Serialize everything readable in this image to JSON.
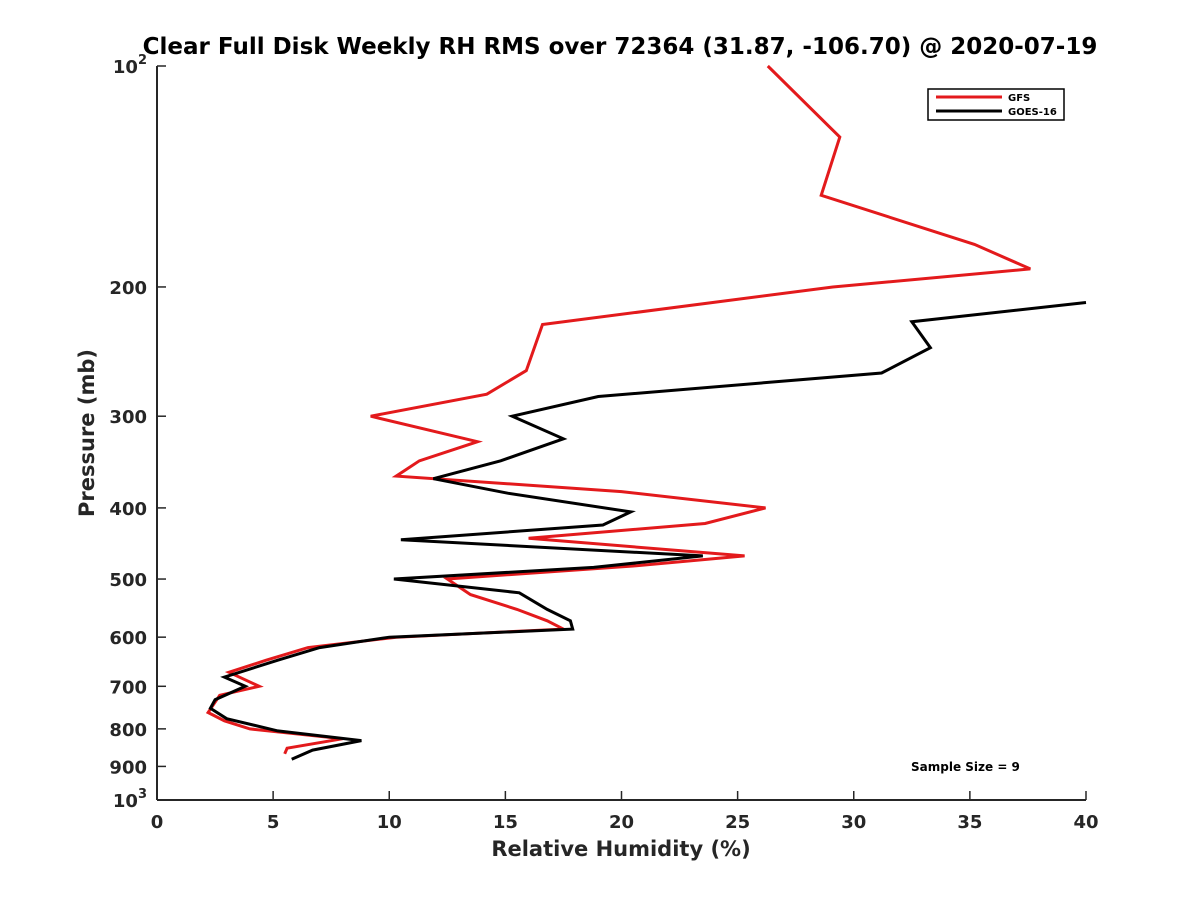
{
  "chart_data": {
    "type": "line",
    "title": "Clear Full Disk Weekly RH RMS over 72364 (31.87, -106.70) @ 2020-07-19",
    "xlabel": "Relative Humidity (%)",
    "ylabel": "Pressure (mb)",
    "xlim": [
      0,
      40
    ],
    "ylim": [
      100,
      1000
    ],
    "y_scale": "log",
    "y_reversed": true,
    "grid": false,
    "legend_position": "top-right",
    "x_ticks": [
      0,
      5,
      10,
      15,
      20,
      25,
      30,
      35,
      40
    ],
    "x_tick_labels": [
      "0",
      "5",
      "10",
      "15",
      "20",
      "25",
      "30",
      "35",
      "40"
    ],
    "y_ticks": [
      100,
      200,
      300,
      400,
      500,
      600,
      700,
      800,
      900,
      1000
    ],
    "y_tick_labels": [
      {
        "base": "10",
        "exp": "2"
      },
      {
        "base": "200",
        "exp": ""
      },
      {
        "base": "300",
        "exp": ""
      },
      {
        "base": "400",
        "exp": ""
      },
      {
        "base": "500",
        "exp": ""
      },
      {
        "base": "600",
        "exp": ""
      },
      {
        "base": "700",
        "exp": ""
      },
      {
        "base": "800",
        "exp": ""
      },
      {
        "base": "900",
        "exp": ""
      },
      {
        "base": "10",
        "exp": "3"
      }
    ],
    "series": [
      {
        "name": "GFS",
        "color": "#e31a1c",
        "points": [
          {
            "x": 26.3,
            "p": 100
          },
          {
            "x": 29.4,
            "p": 125
          },
          {
            "x": 28.6,
            "p": 150
          },
          {
            "x": 35.2,
            "p": 175
          },
          {
            "x": 37.6,
            "p": 189
          },
          {
            "x": 29.1,
            "p": 200
          },
          {
            "x": 16.6,
            "p": 225
          },
          {
            "x": 15.9,
            "p": 260
          },
          {
            "x": 14.2,
            "p": 280
          },
          {
            "x": 9.2,
            "p": 300
          },
          {
            "x": 13.8,
            "p": 325
          },
          {
            "x": 11.3,
            "p": 345
          },
          {
            "x": 10.3,
            "p": 362
          },
          {
            "x": 20.0,
            "p": 380
          },
          {
            "x": 26.2,
            "p": 400
          },
          {
            "x": 23.6,
            "p": 420
          },
          {
            "x": 16.0,
            "p": 440
          },
          {
            "x": 25.3,
            "p": 465
          },
          {
            "x": 20.5,
            "p": 480
          },
          {
            "x": 12.5,
            "p": 500
          },
          {
            "x": 13.5,
            "p": 525
          },
          {
            "x": 15.5,
            "p": 550
          },
          {
            "x": 16.8,
            "p": 570
          },
          {
            "x": 17.5,
            "p": 585
          },
          {
            "x": 10.3,
            "p": 600
          },
          {
            "x": 6.5,
            "p": 620
          },
          {
            "x": 4.7,
            "p": 645
          },
          {
            "x": 3.1,
            "p": 670
          },
          {
            "x": 4.4,
            "p": 700
          },
          {
            "x": 2.7,
            "p": 720
          },
          {
            "x": 2.2,
            "p": 760
          },
          {
            "x": 2.9,
            "p": 780
          },
          {
            "x": 4.0,
            "p": 800
          },
          {
            "x": 8.0,
            "p": 825
          },
          {
            "x": 5.6,
            "p": 850
          },
          {
            "x": 5.5,
            "p": 865
          }
        ]
      },
      {
        "name": "GOES-16",
        "color": "#000000",
        "points": [
          {
            "x": 40.0,
            "p": 210
          },
          {
            "x": 32.5,
            "p": 223
          },
          {
            "x": 33.3,
            "p": 242
          },
          {
            "x": 31.2,
            "p": 262
          },
          {
            "x": 19.0,
            "p": 282
          },
          {
            "x": 15.3,
            "p": 300
          },
          {
            "x": 17.5,
            "p": 322
          },
          {
            "x": 14.8,
            "p": 345
          },
          {
            "x": 11.9,
            "p": 365
          },
          {
            "x": 15.1,
            "p": 382
          },
          {
            "x": 20.4,
            "p": 405
          },
          {
            "x": 19.2,
            "p": 422
          },
          {
            "x": 10.5,
            "p": 442
          },
          {
            "x": 23.5,
            "p": 465
          },
          {
            "x": 18.8,
            "p": 482
          },
          {
            "x": 10.2,
            "p": 500
          },
          {
            "x": 15.6,
            "p": 522
          },
          {
            "x": 16.8,
            "p": 550
          },
          {
            "x": 17.8,
            "p": 570
          },
          {
            "x": 17.9,
            "p": 585
          },
          {
            "x": 10.0,
            "p": 600
          },
          {
            "x": 7.0,
            "p": 620
          },
          {
            "x": 5.2,
            "p": 645
          },
          {
            "x": 2.9,
            "p": 680
          },
          {
            "x": 3.8,
            "p": 700
          },
          {
            "x": 2.5,
            "p": 730
          },
          {
            "x": 2.3,
            "p": 750
          },
          {
            "x": 3.0,
            "p": 775
          },
          {
            "x": 5.2,
            "p": 805
          },
          {
            "x": 8.8,
            "p": 830
          },
          {
            "x": 6.7,
            "p": 855
          },
          {
            "x": 5.8,
            "p": 880
          }
        ]
      }
    ],
    "annotation": "Sample Size = 9"
  }
}
